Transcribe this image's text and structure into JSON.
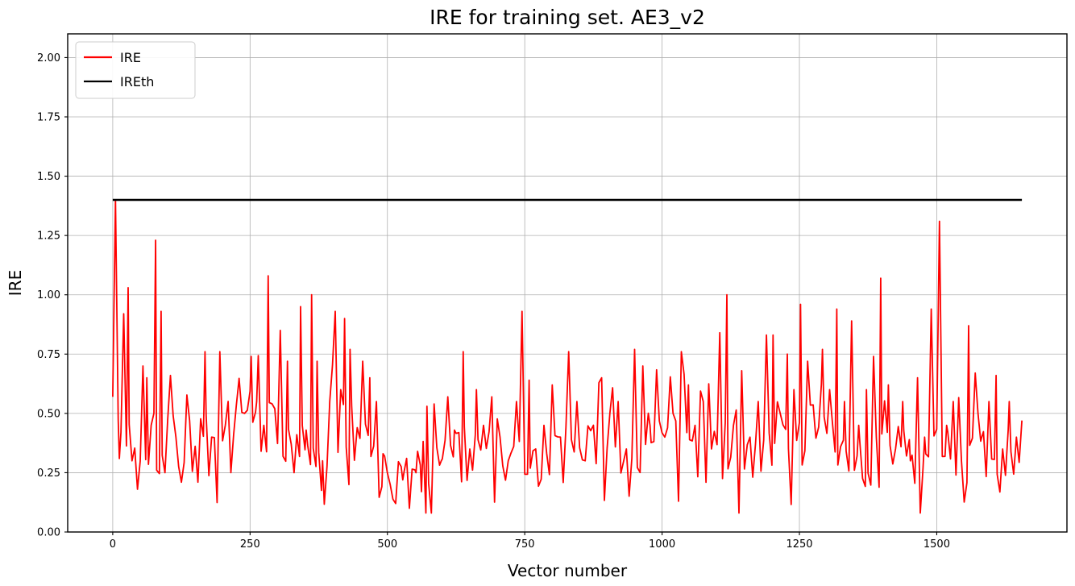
{
  "figure": {
    "background": "#ffffff",
    "accent_red": "#ff0000",
    "accent_black": "#000000",
    "grid_color": "#b0b0b0"
  },
  "chart_data": {
    "type": "line",
    "title": "IRE for training set. AE3_v2",
    "xlabel": "Vector number",
    "ylabel": "IRE",
    "xlim": [
      -82,
      1737
    ],
    "ylim": [
      0,
      2.1
    ],
    "grid": true,
    "xticks": [
      0,
      250,
      500,
      750,
      1000,
      1250,
      1500
    ],
    "xticklabels": [
      "0",
      "250",
      "500",
      "750",
      "1000",
      "1250",
      "1500"
    ],
    "yticks": [
      0.0,
      0.25,
      0.5,
      0.75,
      1.0,
      1.25,
      1.5,
      1.75,
      2.0
    ],
    "yticklabels": [
      "0.00",
      "0.25",
      "0.50",
      "0.75",
      "1.00",
      "1.25",
      "1.50",
      "1.75",
      "2.00"
    ],
    "legend": {
      "position": "upper-left",
      "entries": [
        {
          "label": "IRE",
          "color": "#ff0000"
        },
        {
          "label": "IREth",
          "color": "#000000"
        }
      ]
    },
    "series": [
      {
        "name": "IRE",
        "kind": "noisy-line",
        "color": "#ff0000",
        "linewidth": 1.8,
        "x_range": [
          0,
          1655
        ],
        "seed": 20,
        "noise_step": 5,
        "value_floor": 0.08,
        "value_ceil": 1.38,
        "baseline": [
          [
            0,
            0.38,
            0.16
          ],
          [
            100,
            0.34,
            0.14
          ],
          [
            250,
            0.42,
            0.18
          ],
          [
            440,
            0.4,
            0.15
          ],
          [
            495,
            0.19,
            0.09
          ],
          [
            565,
            0.27,
            0.12
          ],
          [
            650,
            0.31,
            0.13
          ],
          [
            760,
            0.29,
            0.12
          ],
          [
            860,
            0.33,
            0.13
          ],
          [
            950,
            0.38,
            0.15
          ],
          [
            1060,
            0.33,
            0.14
          ],
          [
            1160,
            0.33,
            0.14
          ],
          [
            1240,
            0.42,
            0.16
          ],
          [
            1340,
            0.3,
            0.13
          ],
          [
            1440,
            0.31,
            0.13
          ],
          [
            1545,
            0.29,
            0.12
          ],
          [
            1655,
            0.33,
            0.1
          ]
        ],
        "anchors": [
          [
            0,
            0.57
          ],
          [
            5,
            1.4
          ],
          [
            12,
            0.31
          ],
          [
            20,
            0.92
          ],
          [
            28,
            1.03
          ],
          [
            35,
            0.3
          ],
          [
            45,
            0.18
          ],
          [
            55,
            0.7
          ],
          [
            62,
            0.65
          ],
          [
            70,
            0.45
          ],
          [
            78,
            1.23
          ],
          [
            88,
            0.93
          ],
          [
            95,
            0.25
          ],
          [
            105,
            0.66
          ],
          [
            115,
            0.4
          ],
          [
            125,
            0.21
          ],
          [
            140,
            0.47
          ],
          [
            155,
            0.21
          ],
          [
            168,
            0.76
          ],
          [
            180,
            0.4
          ],
          [
            195,
            0.76
          ],
          [
            205,
            0.45
          ],
          [
            215,
            0.25
          ],
          [
            228,
            0.6
          ],
          [
            240,
            0.5
          ],
          [
            252,
            0.74
          ],
          [
            262,
            0.55
          ],
          [
            275,
            0.45
          ],
          [
            283,
            1.08
          ],
          [
            295,
            0.52
          ],
          [
            305,
            0.85
          ],
          [
            318,
            0.72
          ],
          [
            330,
            0.25
          ],
          [
            342,
            0.95
          ],
          [
            352,
            0.43
          ],
          [
            362,
            1.0
          ],
          [
            372,
            0.72
          ],
          [
            382,
            0.3
          ],
          [
            395,
            0.55
          ],
          [
            405,
            0.93
          ],
          [
            415,
            0.6
          ],
          [
            422,
            0.9
          ],
          [
            432,
            0.77
          ],
          [
            445,
            0.44
          ],
          [
            455,
            0.72
          ],
          [
            468,
            0.65
          ],
          [
            480,
            0.55
          ],
          [
            492,
            0.33
          ],
          [
            505,
            0.2
          ],
          [
            515,
            0.12
          ],
          [
            528,
            0.22
          ],
          [
            540,
            0.1
          ],
          [
            552,
            0.25
          ],
          [
            562,
            0.17
          ],
          [
            572,
            0.53
          ],
          [
            585,
            0.54
          ],
          [
            598,
            0.3
          ],
          [
            610,
            0.57
          ],
          [
            622,
            0.43
          ],
          [
            638,
            0.76
          ],
          [
            650,
            0.35
          ],
          [
            662,
            0.6
          ],
          [
            675,
            0.45
          ],
          [
            690,
            0.57
          ],
          [
            705,
            0.4
          ],
          [
            720,
            0.3
          ],
          [
            735,
            0.55
          ],
          [
            745,
            0.93
          ],
          [
            758,
            0.64
          ],
          [
            770,
            0.35
          ],
          [
            785,
            0.45
          ],
          [
            800,
            0.62
          ],
          [
            815,
            0.4
          ],
          [
            830,
            0.76
          ],
          [
            845,
            0.55
          ],
          [
            860,
            0.3
          ],
          [
            875,
            0.45
          ],
          [
            890,
            0.65
          ],
          [
            905,
            0.5
          ],
          [
            920,
            0.55
          ],
          [
            935,
            0.35
          ],
          [
            950,
            0.77
          ],
          [
            965,
            0.7
          ],
          [
            978,
            0.45
          ],
          [
            992,
            0.6
          ],
          [
            1005,
            0.4
          ],
          [
            1020,
            0.5
          ],
          [
            1035,
            0.76
          ],
          [
            1048,
            0.62
          ],
          [
            1060,
            0.45
          ],
          [
            1075,
            0.55
          ],
          [
            1090,
            0.35
          ],
          [
            1105,
            0.84
          ],
          [
            1118,
            1.0
          ],
          [
            1130,
            0.45
          ],
          [
            1145,
            0.68
          ],
          [
            1160,
            0.4
          ],
          [
            1175,
            0.55
          ],
          [
            1190,
            0.83
          ],
          [
            1202,
            0.83
          ],
          [
            1215,
            0.5
          ],
          [
            1228,
            0.75
          ],
          [
            1240,
            0.6
          ],
          [
            1252,
            0.96
          ],
          [
            1265,
            0.72
          ],
          [
            1278,
            0.45
          ],
          [
            1292,
            0.77
          ],
          [
            1305,
            0.6
          ],
          [
            1318,
            0.94
          ],
          [
            1332,
            0.55
          ],
          [
            1345,
            0.89
          ],
          [
            1358,
            0.45
          ],
          [
            1372,
            0.6
          ],
          [
            1385,
            0.74
          ],
          [
            1398,
            1.07
          ],
          [
            1412,
            0.62
          ],
          [
            1425,
            0.35
          ],
          [
            1438,
            0.55
          ],
          [
            1452,
            0.3
          ],
          [
            1465,
            0.65
          ],
          [
            1478,
            0.4
          ],
          [
            1490,
            0.94
          ],
          [
            1505,
            1.31
          ],
          [
            1518,
            0.45
          ],
          [
            1530,
            0.55
          ],
          [
            1545,
            0.3
          ],
          [
            1558,
            0.87
          ],
          [
            1570,
            0.67
          ],
          [
            1582,
            0.4
          ],
          [
            1595,
            0.55
          ],
          [
            1608,
            0.66
          ],
          [
            1620,
            0.35
          ],
          [
            1632,
            0.55
          ],
          [
            1645,
            0.4
          ],
          [
            1655,
            0.47
          ]
        ]
      },
      {
        "name": "IREth",
        "kind": "hline",
        "color": "#000000",
        "linewidth": 2.5,
        "y": 1.4,
        "x_range": [
          0,
          1655
        ]
      }
    ]
  }
}
